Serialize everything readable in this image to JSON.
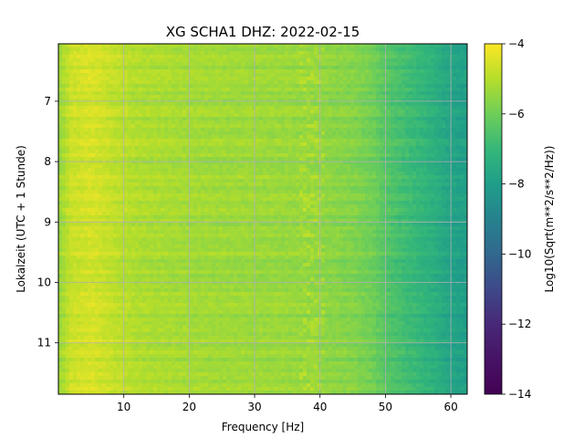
{
  "chart_data": {
    "type": "heatmap",
    "title": "XG SCHA1  DHZ: 2022-02-15",
    "xlabel": "Frequency [Hz]",
    "ylabel": "Lokalzeit (UTC + 1 Stunde)",
    "xlim": [
      0,
      62.5
    ],
    "ylim": [
      11.85,
      6.05
    ],
    "y_inverted": true,
    "xticks": [
      10,
      20,
      30,
      40,
      50,
      60
    ],
    "yticks": [
      7,
      8,
      9,
      10,
      11
    ],
    "grid": true,
    "colormap": "viridis",
    "colorbar": {
      "label": "Log10(Sqrt(m**2/s**2/Hz))",
      "range": [
        -14,
        -4
      ],
      "ticks": [
        -4,
        -6,
        -8,
        -10,
        -12,
        -14
      ]
    },
    "profile": {
      "frequency_hz": [
        0,
        2,
        5,
        8,
        12,
        20,
        30,
        38,
        45,
        48,
        50,
        53,
        56,
        58,
        60,
        62.5
      ],
      "log10_amplitude": [
        -5.6,
        -4.8,
        -4.6,
        -4.9,
        -5.2,
        -5.4,
        -5.5,
        -5.6,
        -5.9,
        -6.2,
        -6.7,
        -7.1,
        -7.5,
        -7.8,
        -8.2,
        -8.4
      ]
    }
  }
}
